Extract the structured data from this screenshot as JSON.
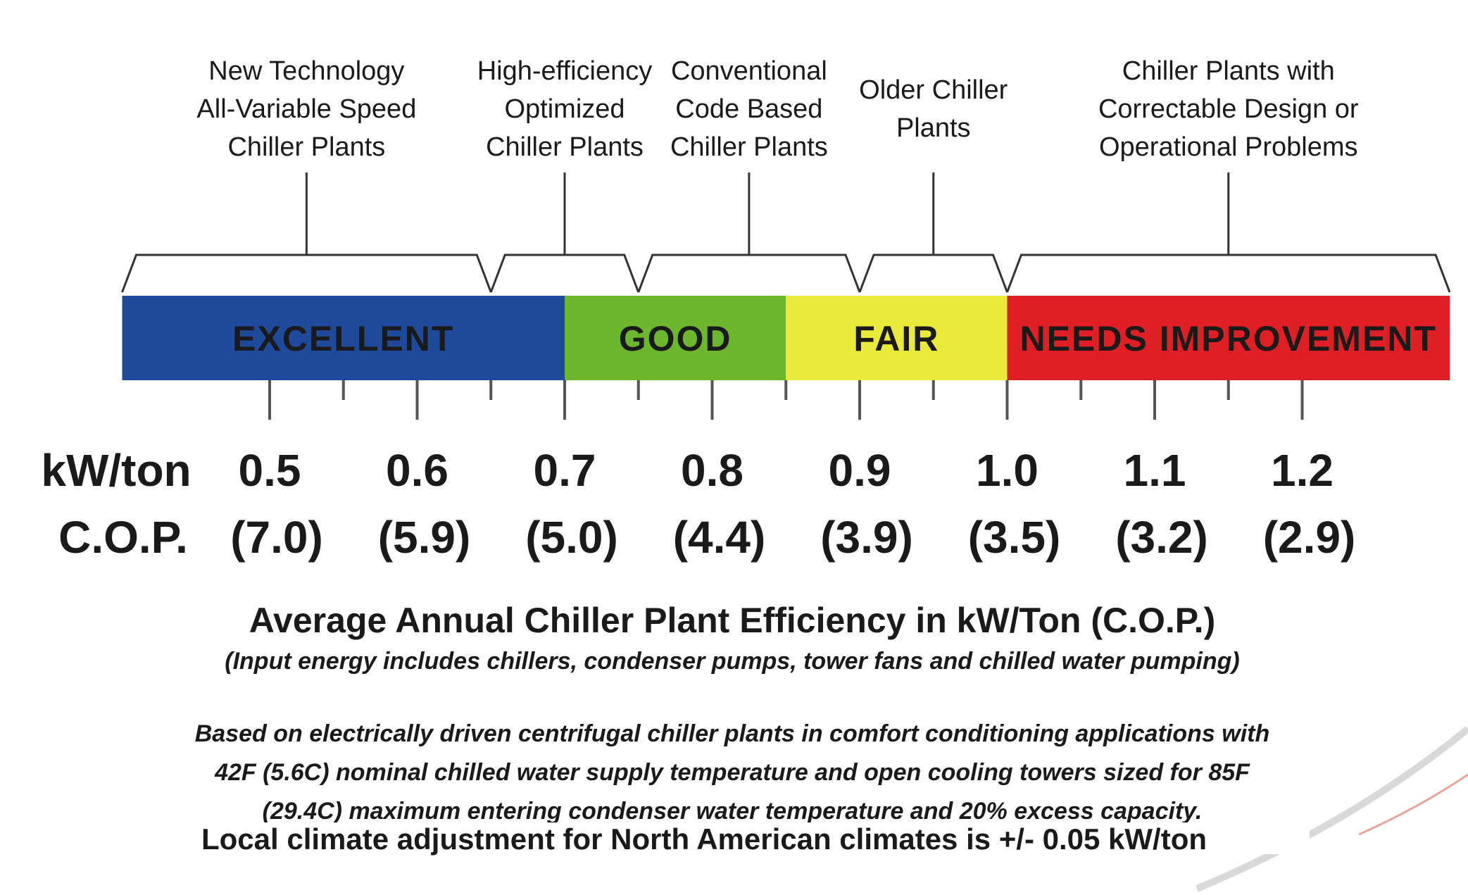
{
  "categories": [
    {
      "label": "EXCELLENT",
      "color": "#1f4a9c",
      "text_color": "#111111",
      "from": 0.4,
      "to": 0.7
    },
    {
      "label": "GOOD",
      "color": "#6db72f",
      "text_color": "#111111",
      "from": 0.7,
      "to": 0.85
    },
    {
      "label": "FAIR",
      "color": "#eaea3a",
      "text_color": "#111111",
      "from": 0.85,
      "to": 1.0
    },
    {
      "label": "NEEDS IMPROVEMENT",
      "color": "#e01e25",
      "text_color": "#111111",
      "from": 1.0,
      "to": 1.3
    }
  ],
  "brackets": [
    {
      "lines": [
        "New Technology",
        "All-Variable Speed",
        "Chiller Plants"
      ],
      "from": 0.4,
      "to": 0.65
    },
    {
      "lines": [
        "High-efficiency",
        "Optimized",
        "Chiller Plants"
      ],
      "from": 0.65,
      "to": 0.75
    },
    {
      "lines": [
        "Conventional",
        "Code Based",
        "Chiller Plants"
      ],
      "from": 0.75,
      "to": 0.9
    },
    {
      "lines": [
        "Older Chiller",
        "Plants"
      ],
      "from": 0.9,
      "to": 1.0
    },
    {
      "lines": [
        "Chiller Plants with",
        "Correctable Design or",
        "Operational Problems"
      ],
      "from": 1.0,
      "to": 1.3
    }
  ],
  "axis": {
    "kw_label": "kW/ton",
    "cop_label": "C.O.P.",
    "major_ticks": [
      {
        "kw": "0.5",
        "cop": "(7.0)",
        "value": 0.5
      },
      {
        "kw": "0.6",
        "cop": "(5.9)",
        "value": 0.6
      },
      {
        "kw": "0.7",
        "cop": "(5.0)",
        "value": 0.7
      },
      {
        "kw": "0.8",
        "cop": "(4.4)",
        "value": 0.8
      },
      {
        "kw": "0.9",
        "cop": "(3.9)",
        "value": 0.9
      },
      {
        "kw": "1.0",
        "cop": "(3.5)",
        "value": 1.0
      },
      {
        "kw": "1.1",
        "cop": "(3.2)",
        "value": 1.1
      },
      {
        "kw": "1.2",
        "cop": "(2.9)",
        "value": 1.2
      }
    ],
    "minor_ticks": [
      0.55,
      0.65,
      0.75,
      0.85,
      0.95,
      1.05,
      1.15
    ]
  },
  "title": "Average Annual Chiller Plant Efficiency in kW/Ton (C.O.P.)",
  "subtitle": "(Input energy includes chillers, condenser pumps, tower fans and chilled water pumping)",
  "note_lines": [
    "Based on electrically driven centrifugal chiller plants in comfort conditioning applications with",
    "42F (5.6C) nominal chilled water supply temperature and open cooling towers sized for 85F",
    "(29.4C) maximum entering condenser water temperature and 20% excess capacity."
  ],
  "climate_note": "Local climate adjustment for North American climates is +/- 0.05 kW/ton"
}
